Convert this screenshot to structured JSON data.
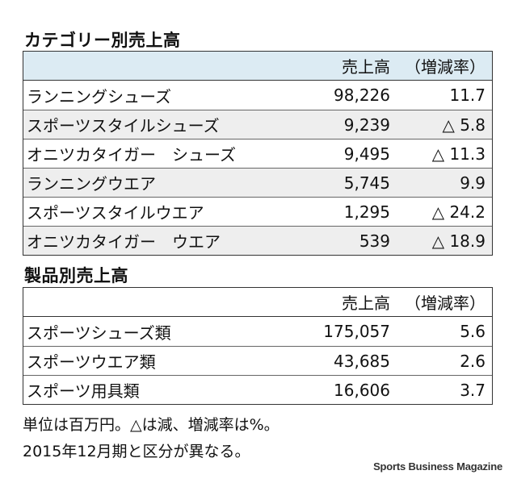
{
  "category": {
    "title": "カテゴリー別売上高",
    "header": {
      "name": "",
      "sales": "売上高",
      "rate": "（増減率）"
    },
    "rows": [
      {
        "name": "ランニングシューズ",
        "sales": "98,226",
        "rate": "11.7"
      },
      {
        "name": "スポーツスタイルシューズ",
        "sales": "9,239",
        "rate": "△ 5.8"
      },
      {
        "name": "オニツカタイガー　シューズ",
        "sales": "9,495",
        "rate": "△ 11.3"
      },
      {
        "name": "ランニングウエア",
        "sales": "5,745",
        "rate": "9.9"
      },
      {
        "name": "スポーツスタイルウエア",
        "sales": "1,295",
        "rate": "△ 24.2"
      },
      {
        "name": "オニツカタイガー　ウエア",
        "sales": "539",
        "rate": "△ 18.9"
      }
    ]
  },
  "product": {
    "title": "製品別売上高",
    "header": {
      "name": "",
      "sales": "売上高",
      "rate": "（増減率）"
    },
    "rows": [
      {
        "name": "スポーツシューズ類",
        "sales": "175,057",
        "rate": "5.6"
      },
      {
        "name": "スポーツウエア類",
        "sales": "43,685",
        "rate": "2.6"
      },
      {
        "name": "スポーツ用具類",
        "sales": "16,606",
        "rate": "3.7"
      }
    ]
  },
  "notes": [
    "単位は百万円。△は減、増減率は%。",
    "2015年12月期と区分が異なる。"
  ],
  "credit": "Sports Business Magazine",
  "colors": {
    "header_bg": "#dcebf3",
    "alt_row_bg": "#eeeeee",
    "border": "#333333"
  }
}
